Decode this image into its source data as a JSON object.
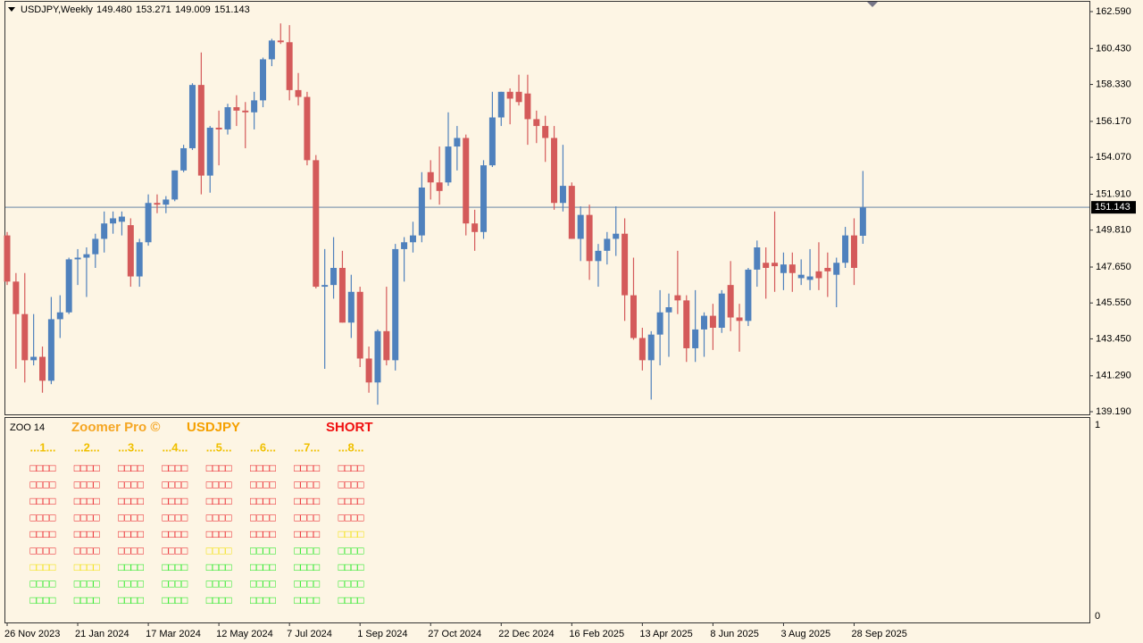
{
  "header": {
    "symbol": "USDJPY,Weekly",
    "ohlc": [
      "149.480",
      "153.271",
      "149.009",
      "151.143"
    ]
  },
  "chart_data": {
    "type": "candlestick",
    "categories": [
      "26 Nov 2023",
      null,
      null,
      null,
      null,
      null,
      null,
      null,
      "21 Jan 2024",
      null,
      null,
      null,
      null,
      null,
      null,
      null,
      "17 Mar 2024",
      null,
      null,
      null,
      null,
      null,
      null,
      null,
      "12 May 2024",
      null,
      null,
      null,
      null,
      null,
      null,
      null,
      "7 Jul 2024",
      null,
      null,
      null,
      null,
      null,
      null,
      null,
      "1 Sep 2024",
      null,
      null,
      null,
      null,
      null,
      null,
      null,
      "27 Oct 2024",
      null,
      null,
      null,
      null,
      null,
      null,
      null,
      "22 Dec 2024",
      null,
      null,
      null,
      null,
      null,
      null,
      null,
      "16 Feb 2025",
      null,
      null,
      null,
      null,
      null,
      null,
      null,
      "13 Apr 2025",
      null,
      null,
      null,
      null,
      null,
      null,
      null,
      "8 Jun 2025",
      null,
      null,
      null,
      null,
      null,
      null,
      null,
      "3 Aug 2025",
      null,
      null,
      null,
      null,
      null,
      null,
      null,
      "28 Sep 2025",
      null
    ],
    "open": [
      149.5,
      146.8,
      144.9,
      142.2,
      142.4,
      141.0,
      144.6,
      145.0,
      148.1,
      148.2,
      148.4,
      149.3,
      150.2,
      150.3,
      150.1,
      147.1,
      149.1,
      151.4,
      151.3,
      151.6,
      153.3,
      154.6,
      158.3,
      153.0,
      155.8,
      155.7,
      157.0,
      156.8,
      156.7,
      157.4,
      159.8,
      160.9,
      160.8,
      158.0,
      157.6,
      153.9,
      146.5,
      146.6,
      147.6,
      144.4,
      146.2,
      142.3,
      140.9,
      143.9,
      142.2,
      148.7,
      149.1,
      149.5,
      153.2,
      152.6,
      152.6,
      154.7,
      155.2,
      150.2,
      149.7,
      153.6,
      156.4,
      157.9,
      157.9,
      157.8,
      156.3,
      155.9,
      155.2,
      151.4,
      152.4,
      149.3,
      150.7,
      148.0,
      148.6,
      149.3,
      149.6,
      146.0,
      143.5,
      142.2,
      143.7,
      145.0,
      146.0,
      145.7,
      142.9,
      144.0,
      144.8,
      144.1,
      146.6,
      144.7,
      144.5,
      147.5,
      147.9,
      147.9,
      147.3,
      147.8,
      147.0,
      146.9,
      147.4,
      147.6,
      147.2,
      147.9,
      149.5,
      149.48
    ],
    "high": [
      149.7,
      147.3,
      147.3,
      144.9,
      143.0,
      145.9,
      146.0,
      148.2,
      148.7,
      148.8,
      149.6,
      150.9,
      150.9,
      150.9,
      150.5,
      149.3,
      151.9,
      151.9,
      151.8,
      153.3,
      154.8,
      158.4,
      160.2,
      155.9,
      156.8,
      157.2,
      157.7,
      157.3,
      157.9,
      159.9,
      161.0,
      161.9,
      161.8,
      159.0,
      157.9,
      154.2,
      148.7,
      149.4,
      148.6,
      147.2,
      146.5,
      143.0,
      144.0,
      146.5,
      149.0,
      149.4,
      150.3,
      153.2,
      153.9,
      154.7,
      156.7,
      155.9,
      155.4,
      151.0,
      153.9,
      157.9,
      157.9,
      158.1,
      158.9,
      158.9,
      156.8,
      156.5,
      155.9,
      154.8,
      152.6,
      151.2,
      151.3,
      149.0,
      149.7,
      151.2,
      150.5,
      148.2,
      144.1,
      143.9,
      146.3,
      146.1,
      148.6,
      146.0,
      146.3,
      145.0,
      145.5,
      146.3,
      148.0,
      145.5,
      147.6,
      149.2,
      148.8,
      150.9,
      148.5,
      148.5,
      148.1,
      148.7,
      149.1,
      148.5,
      148.2,
      150.0,
      150.5,
      153.271
    ],
    "low": [
      146.6,
      141.7,
      140.9,
      141.9,
      140.3,
      140.8,
      143.5,
      144.9,
      146.6,
      145.9,
      147.6,
      148.5,
      149.6,
      149.5,
      146.5,
      146.5,
      148.9,
      150.8,
      150.8,
      151.5,
      153.2,
      154.5,
      151.9,
      152.0,
      153.6,
      155.4,
      155.9,
      154.6,
      155.7,
      157.0,
      159.4,
      160.7,
      157.4,
      157.1,
      153.6,
      146.4,
      141.7,
      145.8,
      144.4,
      143.5,
      141.8,
      140.3,
      139.6,
      141.9,
      141.6,
      146.8,
      148.5,
      149.1,
      151.6,
      151.3,
      152.4,
      153.3,
      149.5,
      148.6,
      149.3,
      153.5,
      155.9,
      156.0,
      157.1,
      154.8,
      154.9,
      153.8,
      151.0,
      150.9,
      149.3,
      148.0,
      146.9,
      146.5,
      147.8,
      148.3,
      144.5,
      143.4,
      141.6,
      139.9,
      141.9,
      142.4,
      144.9,
      142.1,
      142.1,
      142.4,
      142.8,
      143.8,
      143.9,
      142.7,
      144.2,
      146.5,
      145.8,
      146.2,
      146.3,
      146.2,
      146.6,
      146.3,
      146.3,
      145.9,
      145.3,
      147.6,
      146.6,
      149.009
    ],
    "close": [
      146.8,
      144.9,
      142.2,
      142.4,
      141.0,
      144.6,
      145.0,
      148.1,
      148.2,
      148.4,
      149.3,
      150.2,
      150.5,
      150.6,
      147.1,
      149.1,
      151.4,
      151.3,
      151.6,
      153.3,
      154.6,
      158.3,
      153.0,
      155.8,
      155.7,
      157.0,
      156.8,
      156.7,
      157.4,
      159.8,
      160.9,
      160.8,
      158.0,
      157.6,
      153.9,
      146.5,
      146.6,
      147.6,
      144.4,
      146.2,
      142.3,
      140.9,
      143.9,
      142.2,
      148.7,
      149.1,
      149.5,
      152.3,
      152.6,
      152.1,
      154.7,
      155.2,
      150.2,
      149.7,
      153.6,
      156.4,
      157.9,
      157.5,
      157.3,
      156.3,
      155.9,
      155.2,
      151.4,
      152.4,
      149.3,
      150.7,
      148.0,
      148.6,
      149.3,
      149.6,
      146.0,
      143.5,
      142.2,
      143.7,
      145.0,
      145.3,
      145.7,
      142.9,
      144.0,
      144.8,
      144.1,
      146.1,
      144.7,
      144.5,
      147.5,
      148.8,
      147.6,
      147.7,
      147.8,
      147.3,
      147.2,
      147.1,
      147.0,
      147.4,
      147.9,
      149.5,
      147.6,
      151.143
    ],
    "up_color": "#4f81bd",
    "down_color": "#d45a5a",
    "ylim": [
      139.033,
      163.165
    ],
    "yticks": [
      {
        "value": 162.59,
        "label": "162.590"
      },
      {
        "value": 160.43,
        "label": "160.430"
      },
      {
        "value": 158.33,
        "label": "158.330"
      },
      {
        "value": 156.17,
        "label": "156.170"
      },
      {
        "value": 154.07,
        "label": "154.070"
      },
      {
        "value": 151.91,
        "label": "151.910"
      },
      {
        "value": 149.81,
        "label": "149.810"
      },
      {
        "value": 147.65,
        "label": "147.650"
      },
      {
        "value": 145.55,
        "label": "145.550"
      },
      {
        "value": 143.45,
        "label": "143.450"
      },
      {
        "value": 141.29,
        "label": "141.290"
      },
      {
        "value": 139.19,
        "label": "139.190"
      }
    ],
    "price_line": {
      "value": 151.143,
      "label": "151.143",
      "color": "#9aaabb"
    }
  },
  "indicator": {
    "name": "ZOO 14",
    "title": "Zoomer Pro ©",
    "symbol": "USDJPY",
    "signal": "SHORT",
    "columns": [
      "...1...",
      "...2...",
      "...3...",
      "...4...",
      "...5...",
      "...6...",
      "...7...",
      "...8..."
    ],
    "cell_text": "□□□□",
    "cells": [
      [
        "#e8101a",
        "#e8101a",
        "#e8101a",
        "#e8101a",
        "#e8101a",
        "#e8101a",
        "#e8101a",
        "#e8101a"
      ],
      [
        "#e8101a",
        "#e8101a",
        "#e8101a",
        "#e8101a",
        "#e8101a",
        "#e8101a",
        "#e8101a",
        "#e8101a"
      ],
      [
        "#e8101a",
        "#e8101a",
        "#e8101a",
        "#e8101a",
        "#e8101a",
        "#e8101a",
        "#e8101a",
        "#e8101a"
      ],
      [
        "#e8101a",
        "#e8101a",
        "#e8101a",
        "#e8101a",
        "#e8101a",
        "#e8101a",
        "#e8101a",
        "#e8101a"
      ],
      [
        "#e8101a",
        "#e8101a",
        "#e8101a",
        "#e8101a",
        "#e8101a",
        "#e8101a",
        "#e8101a",
        "#f2e000"
      ],
      [
        "#e8101a",
        "#e8101a",
        "#e8101a",
        "#e8101a",
        "#f2e000",
        "#12e812",
        "#12e812",
        "#12e812"
      ],
      [
        "#f2e000",
        "#f2e000",
        "#12e812",
        "#12e812",
        "#12e812",
        "#12e812",
        "#12e812",
        "#12e812"
      ],
      [
        "#12e812",
        "#12e812",
        "#12e812",
        "#12e812",
        "#12e812",
        "#12e812",
        "#12e812",
        "#12e812"
      ],
      [
        "#12e812",
        "#12e812",
        "#12e812",
        "#12e812",
        "#12e812",
        "#12e812",
        "#12e812",
        "#12e812"
      ]
    ],
    "scale": [
      1,
      0
    ]
  }
}
